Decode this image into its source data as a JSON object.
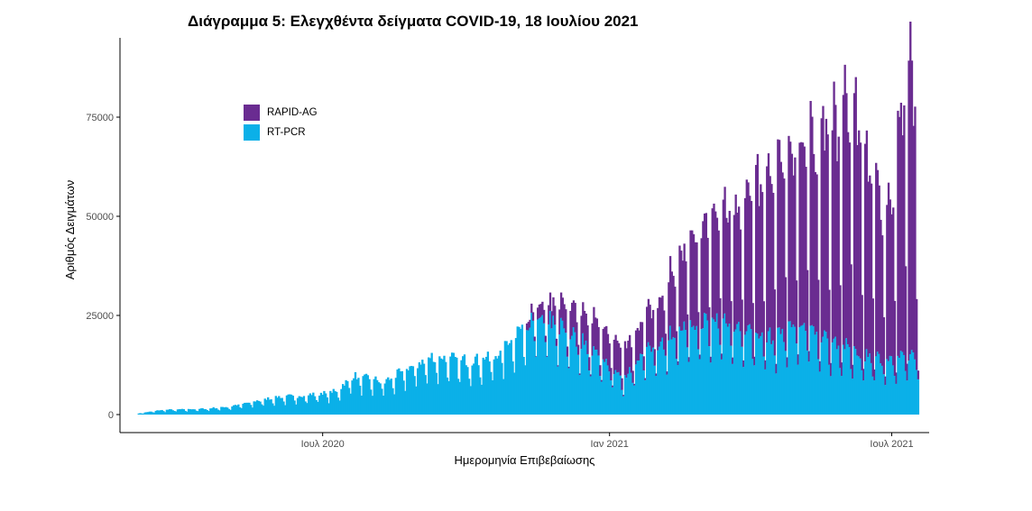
{
  "chart_data": {
    "type": "bar",
    "stacked": true,
    "title": "Διάγραμμα 5: Ελεγχθέντα δείγματα COVID-19, 18 Ιουλίου 2021",
    "xlabel": "Ημερομηνία Επιβεβαίωσης",
    "ylabel": "Αριθμός Δειγμάτων",
    "ylim": [
      0,
      95000
    ],
    "yticks": [
      0,
      25000,
      50000,
      75000
    ],
    "ytick_labels": [
      "0",
      "25000",
      "50000",
      "75000"
    ],
    "xlim": [
      "2020-02-22",
      "2021-07-25"
    ],
    "xticks": [
      {
        "date": "2020-07-01",
        "label": "Ιουλ 2020"
      },
      {
        "date": "2021-01-01",
        "label": "Ιαν 2021"
      },
      {
        "date": "2021-07-01",
        "label": "Ιουλ 2021"
      }
    ],
    "date_range": [
      "2020-03-05",
      "2021-07-18"
    ],
    "legend_position": "top-left",
    "series": [
      {
        "name": "RAPID-AG",
        "color": "#6a2c91",
        "start": "2020-11-09",
        "weekly_peak_points": [
          [
            "2020-11-09",
            2000
          ],
          [
            "2020-11-20",
            4000
          ],
          [
            "2020-12-10",
            8000
          ],
          [
            "2020-12-20",
            9000
          ],
          [
            "2021-01-10",
            8000
          ],
          [
            "2021-01-25",
            10000
          ],
          [
            "2021-02-05",
            14000
          ],
          [
            "2021-02-15",
            20000
          ],
          [
            "2021-02-25",
            24000
          ],
          [
            "2021-03-05",
            28000
          ],
          [
            "2021-03-15",
            31000
          ],
          [
            "2021-03-25",
            35000
          ],
          [
            "2021-04-05",
            40000
          ],
          [
            "2021-04-15",
            45000
          ],
          [
            "2021-04-25",
            48000
          ],
          [
            "2021-05-05",
            52000
          ],
          [
            "2021-05-15",
            55000
          ],
          [
            "2021-05-25",
            60000
          ],
          [
            "2021-06-01",
            65000
          ],
          [
            "2021-06-05",
            72000
          ],
          [
            "2021-06-10",
            62000
          ],
          [
            "2021-06-20",
            50000
          ],
          [
            "2021-06-30",
            42000
          ],
          [
            "2021-07-05",
            60000
          ],
          [
            "2021-07-12",
            80000
          ],
          [
            "2021-07-16",
            75000
          ],
          [
            "2021-07-18",
            40000
          ]
        ]
      },
      {
        "name": "RT-PCR",
        "color": "#0bb0e8",
        "start": "2020-03-05",
        "level_points": [
          [
            "2020-03-05",
            300
          ],
          [
            "2020-03-20",
            1200
          ],
          [
            "2020-04-15",
            1500
          ],
          [
            "2020-05-01",
            2000
          ],
          [
            "2020-06-01",
            4500
          ],
          [
            "2020-06-20",
            5000
          ],
          [
            "2020-07-10",
            6000
          ],
          [
            "2020-07-20",
            10000
          ],
          [
            "2020-08-10",
            8500
          ],
          [
            "2020-08-25",
            12000
          ],
          [
            "2020-09-10",
            15000
          ],
          [
            "2020-10-01",
            14000
          ],
          [
            "2020-10-20",
            15000
          ],
          [
            "2020-11-01",
            21000
          ],
          [
            "2020-11-15",
            25000
          ],
          [
            "2020-12-01",
            23000
          ],
          [
            "2020-12-15",
            19000
          ],
          [
            "2021-01-01",
            13000
          ],
          [
            "2021-01-10",
            9000
          ],
          [
            "2021-01-20",
            15000
          ],
          [
            "2021-02-10",
            21000
          ],
          [
            "2021-03-01",
            24000
          ],
          [
            "2021-03-15",
            25000
          ],
          [
            "2021-04-01",
            22000
          ],
          [
            "2021-04-15",
            20000
          ],
          [
            "2021-05-01",
            24000
          ],
          [
            "2021-05-20",
            20000
          ],
          [
            "2021-06-10",
            16000
          ],
          [
            "2021-07-01",
            14000
          ],
          [
            "2021-07-18",
            16000
          ]
        ]
      }
    ]
  }
}
